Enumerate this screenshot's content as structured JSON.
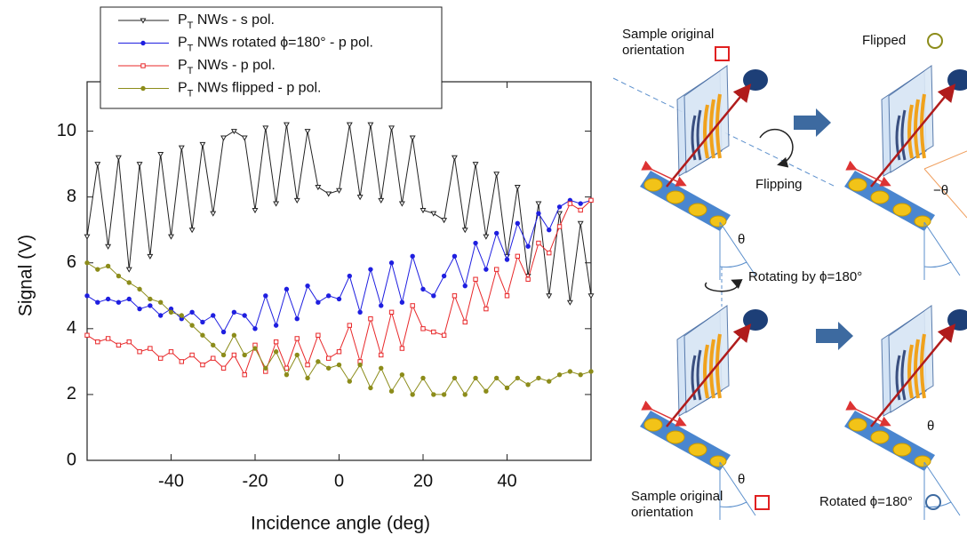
{
  "chart_data": {
    "type": "line",
    "xlabel": "Incidence angle (deg)",
    "ylabel": "Signal (V)",
    "xlim": [
      -60,
      60
    ],
    "xticks": [
      -40,
      -20,
      0,
      20,
      40
    ],
    "ylim": [
      0,
      11.5
    ],
    "yticks": [
      0,
      2,
      4,
      6,
      8,
      10
    ],
    "x": [
      -60,
      -57.5,
      -55,
      -52.5,
      -50,
      -47.5,
      -45,
      -42.5,
      -40,
      -37.5,
      -35,
      -32.5,
      -30,
      -27.5,
      -25,
      -22.5,
      -20,
      -17.5,
      -15,
      -12.5,
      -10,
      -7.5,
      -5,
      -2.5,
      0,
      2.5,
      5,
      7.5,
      10,
      12.5,
      15,
      17.5,
      20,
      22.5,
      25,
      27.5,
      30,
      32.5,
      35,
      37.5,
      40,
      42.5,
      45,
      47.5,
      50,
      52.5,
      55,
      57.5,
      60
    ],
    "series": [
      {
        "name": "PT NWs - s pol.",
        "color": "#222222",
        "marker": "triangle",
        "values": [
          6.8,
          9.0,
          6.5,
          9.2,
          5.8,
          9.0,
          6.2,
          9.3,
          6.8,
          9.5,
          7.0,
          9.6,
          7.5,
          9.8,
          10.0,
          9.8,
          7.6,
          10.1,
          7.8,
          10.2,
          7.9,
          10.0,
          8.3,
          8.1,
          8.2,
          10.2,
          8.0,
          10.2,
          7.9,
          10.1,
          7.8,
          9.8,
          7.6,
          7.5,
          7.3,
          9.2,
          7.0,
          9.0,
          6.8,
          8.7,
          6.2,
          8.3,
          5.6,
          7.8,
          5.0,
          7.5,
          4.8,
          7.2,
          5.0
        ]
      },
      {
        "name": "PT NWs rotated ϕ=180° - p pol.",
        "color": "#1f1fe0",
        "marker": "circle",
        "values": [
          5.0,
          4.8,
          4.9,
          4.8,
          4.9,
          4.6,
          4.7,
          4.4,
          4.6,
          4.3,
          4.5,
          4.2,
          4.4,
          3.9,
          4.5,
          4.4,
          4.0,
          5.0,
          4.1,
          5.2,
          4.3,
          5.3,
          4.8,
          5.0,
          4.9,
          5.6,
          4.5,
          5.8,
          4.7,
          6.0,
          4.8,
          6.2,
          5.2,
          5.0,
          5.6,
          6.2,
          5.3,
          6.6,
          5.8,
          6.9,
          6.1,
          7.2,
          6.5,
          7.5,
          7.0,
          7.7,
          7.9,
          7.8,
          7.9
        ]
      },
      {
        "name": "PT NWs - p pol.",
        "color": "#e8282a",
        "marker": "square",
        "values": [
          3.8,
          3.6,
          3.7,
          3.5,
          3.6,
          3.3,
          3.4,
          3.1,
          3.3,
          3.0,
          3.2,
          2.9,
          3.1,
          2.8,
          3.2,
          2.6,
          3.5,
          2.7,
          3.6,
          2.8,
          3.7,
          2.9,
          3.8,
          3.1,
          3.3,
          4.1,
          3.0,
          4.3,
          3.2,
          4.5,
          3.4,
          4.7,
          4.0,
          3.9,
          3.8,
          5.0,
          4.2,
          5.5,
          4.6,
          5.8,
          5.0,
          6.2,
          5.5,
          6.6,
          6.3,
          7.1,
          7.8,
          7.6,
          7.9
        ]
      },
      {
        "name": "PT NWs flipped - p pol.",
        "color": "#8c8c1a",
        "marker": "circle",
        "values": [
          6.0,
          5.8,
          5.9,
          5.6,
          5.4,
          5.2,
          4.9,
          4.8,
          4.5,
          4.4,
          4.1,
          3.8,
          3.5,
          3.2,
          3.8,
          3.2,
          3.4,
          2.8,
          3.3,
          2.6,
          3.2,
          2.5,
          3.0,
          2.8,
          2.9,
          2.4,
          2.9,
          2.2,
          2.8,
          2.1,
          2.6,
          2.0,
          2.5,
          2.0,
          2.0,
          2.5,
          2.0,
          2.5,
          2.1,
          2.5,
          2.2,
          2.5,
          2.3,
          2.5,
          2.4,
          2.6,
          2.7,
          2.6,
          2.7
        ]
      }
    ]
  },
  "diagram": {
    "top_left_label": "Sample original orientation",
    "flipped_label": "Flipped",
    "flipping_label": "Flipping",
    "theta_1": "θ",
    "minus_theta": "−θ",
    "rotating_label": "Rotating by ϕ=180°",
    "bottom_left_label": "Sample original orientation",
    "rotated_label": "Rotated ϕ=180°",
    "theta_2": "θ",
    "theta_3": "θ"
  }
}
